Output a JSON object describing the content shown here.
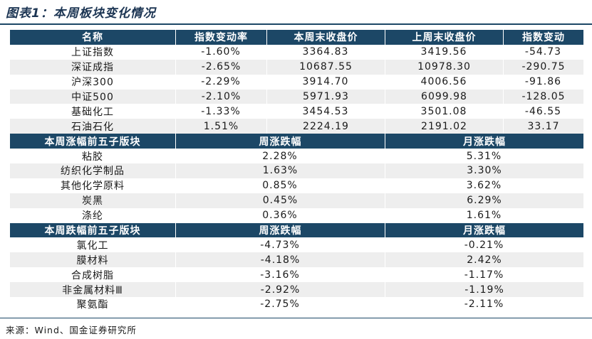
{
  "title": "图表1：本周板块变化情况",
  "index_table": {
    "headers": [
      "名称",
      "指数变动率",
      "本周末收盘价",
      "上周末收盘价",
      "指数变动"
    ],
    "rows": [
      [
        "上证指数",
        "-1.60%",
        "3364.83",
        "3419.56",
        "-54.73"
      ],
      [
        "深证成指",
        "-2.65%",
        "10687.55",
        "10978.30",
        "-290.75"
      ],
      [
        "沪深300",
        "-2.29%",
        "3914.70",
        "4006.56",
        "-91.86"
      ],
      [
        "中证500",
        "-2.10%",
        "5971.93",
        "6099.98",
        "-128.05"
      ],
      [
        "基础化工",
        "-1.33%",
        "3454.53",
        "3501.08",
        "-46.55"
      ],
      [
        "石油石化",
        "1.51%",
        "2224.19",
        "2191.02",
        "33.17"
      ]
    ]
  },
  "top_gainers": {
    "headers": [
      "本周涨幅前五子版块",
      "周涨跌幅",
      "月涨跌幅"
    ],
    "rows": [
      [
        "粘胶",
        "2.28%",
        "5.31%"
      ],
      [
        "纺织化学制品",
        "1.63%",
        "3.30%"
      ],
      [
        "其他化学原料",
        "0.85%",
        "3.62%"
      ],
      [
        "炭黑",
        "0.45%",
        "6.29%"
      ],
      [
        "涤纶",
        "0.36%",
        "1.61%"
      ]
    ]
  },
  "top_losers": {
    "headers": [
      "本周跌幅前五子版块",
      "周涨跌幅",
      "月涨跌幅"
    ],
    "rows": [
      [
        "氯化工",
        "-4.73%",
        "-0.21%"
      ],
      [
        "膜材料",
        "-4.18%",
        "2.42%"
      ],
      [
        "合成树脂",
        "-3.16%",
        "-1.17%"
      ],
      [
        "非金属材料Ⅲ",
        "-2.92%",
        "-1.19%"
      ],
      [
        "聚氨酯",
        "-2.75%",
        "-2.11%"
      ]
    ]
  },
  "source": "来源：Wind、国金证券研究所"
}
